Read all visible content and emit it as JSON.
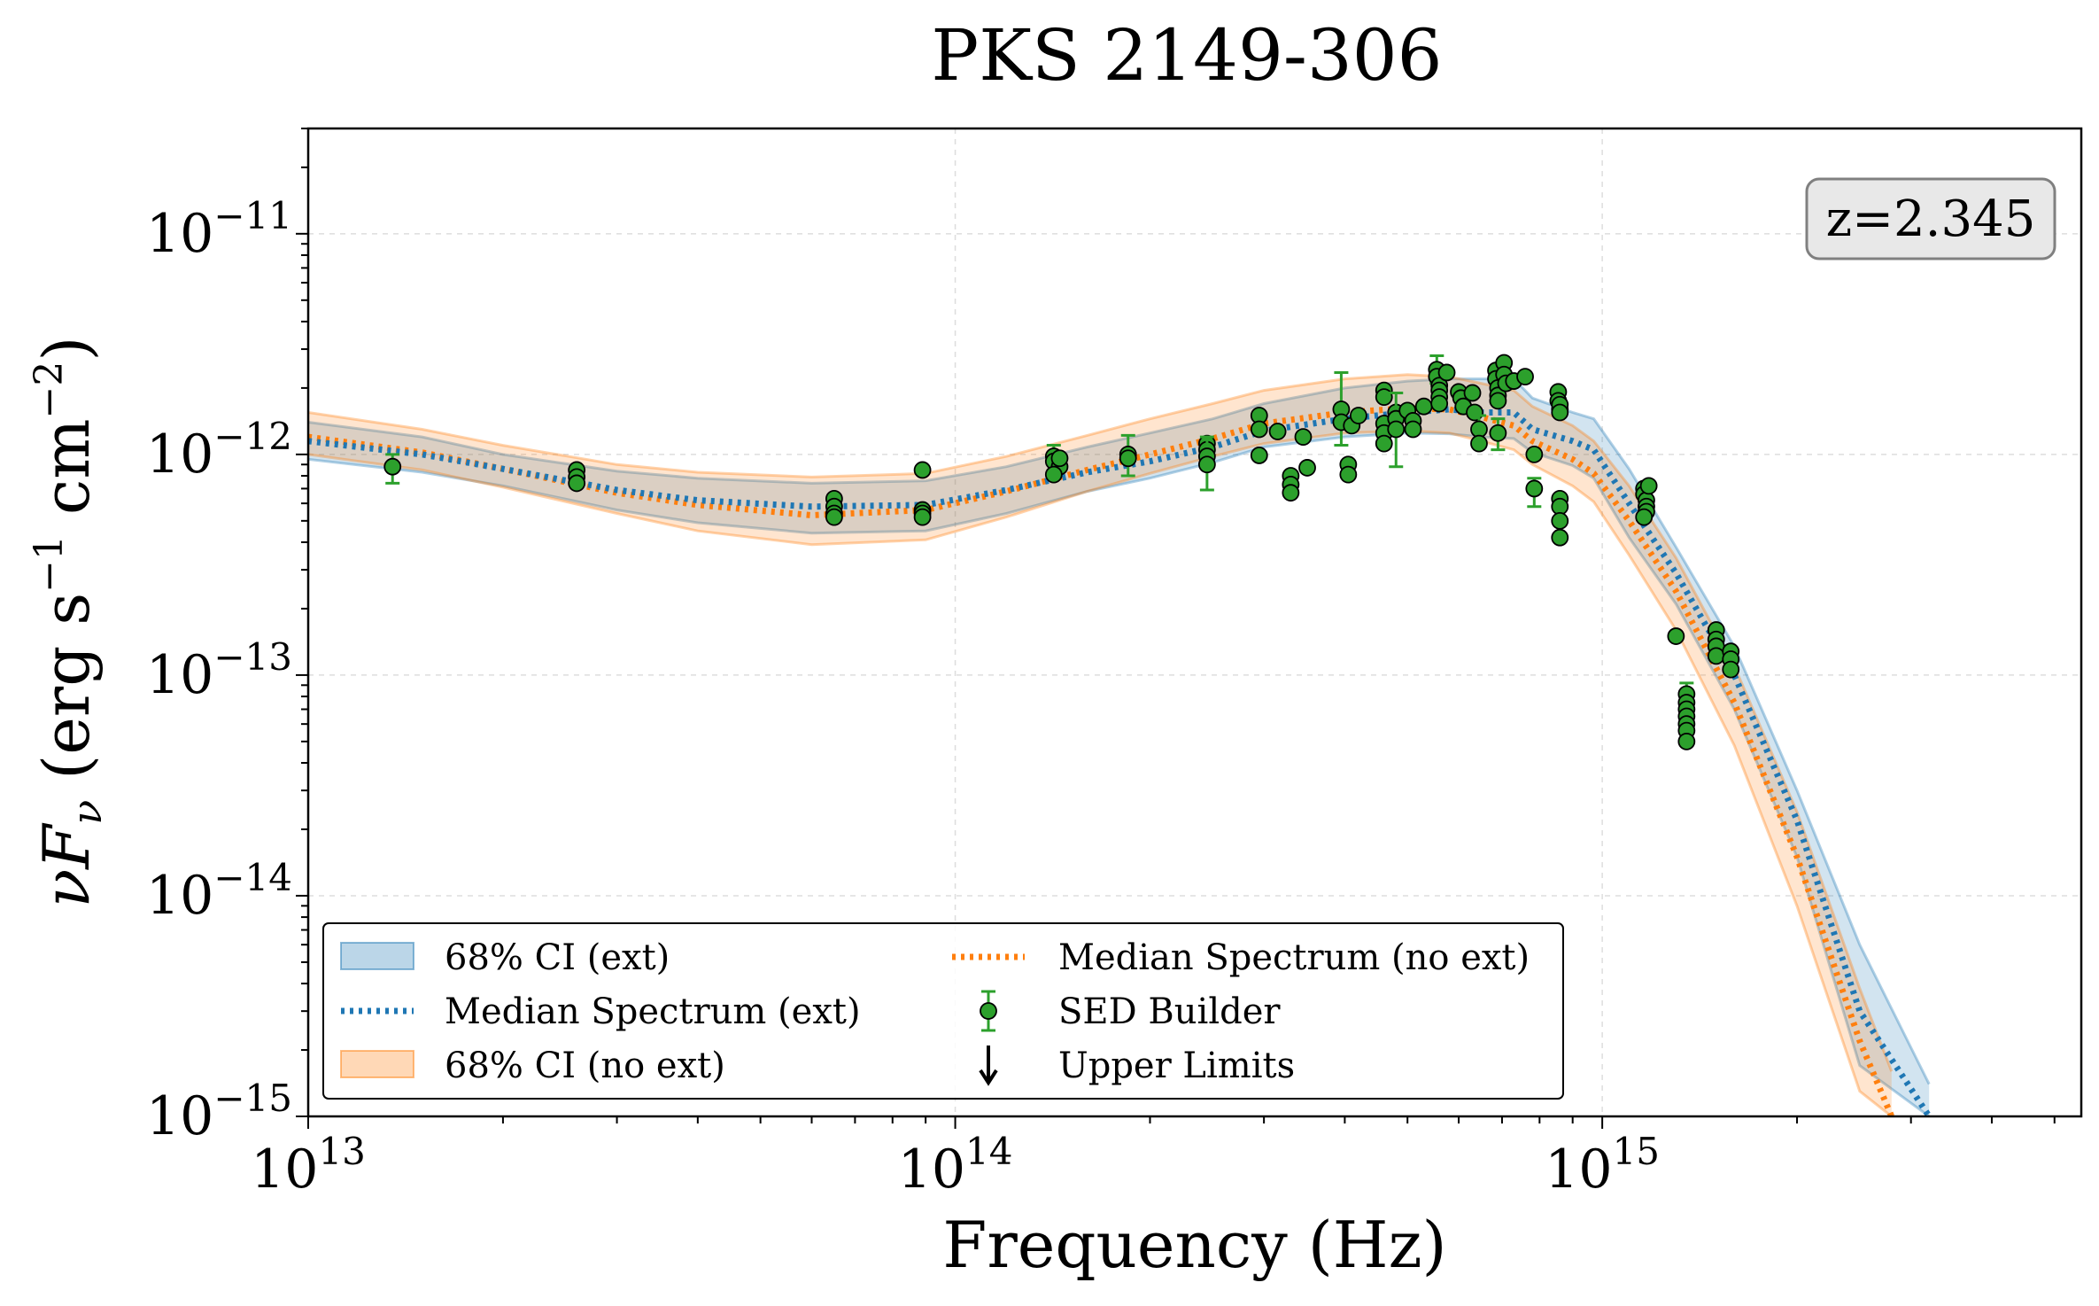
{
  "chart_data": {
    "type": "line",
    "title": "PKS 2149-306",
    "xlabel": "Frequency (Hz)",
    "ylabel": "νF_ν (erg s⁻¹ cm⁻²)",
    "ylabel_parts": {
      "main": "νF",
      "sub": "ν",
      "rest": " (erg s",
      "exp1": "−1",
      "mid": " cm",
      "exp2": "−2",
      "end": ")"
    },
    "x_scale": "log",
    "y_scale": "log",
    "xlim": [
      10000000000000.0,
      5500000000000000.0
    ],
    "ylim": [
      1e-15,
      3e-11
    ],
    "x_ticks": [
      {
        "value": 10000000000000.0,
        "base": "10",
        "exp": "13"
      },
      {
        "value": 100000000000000.0,
        "base": "10",
        "exp": "14"
      },
      {
        "value": 1000000000000000.0,
        "base": "10",
        "exp": "15"
      }
    ],
    "y_ticks": [
      {
        "value": 1e-15,
        "base": "10",
        "exp": "−15"
      },
      {
        "value": 1e-14,
        "base": "10",
        "exp": "−14"
      },
      {
        "value": 1e-13,
        "base": "10",
        "exp": "−13"
      },
      {
        "value": 1e-12,
        "base": "10",
        "exp": "−12"
      },
      {
        "value": 1e-11,
        "base": "10",
        "exp": "−11"
      }
    ],
    "grid": true,
    "annotation": "z=2.345",
    "legend": {
      "placement": "lower-left",
      "entries": [
        {
          "label": "68% CI (ext)",
          "kind": "patch",
          "color": "#1f77b4"
        },
        {
          "label": "Median Spectrum (ext)",
          "kind": "dotted",
          "color": "#1f77b4"
        },
        {
          "label": "68% CI (no ext)",
          "kind": "patch",
          "color": "#ff7f0e"
        },
        {
          "label": "Median Spectrum (no ext)",
          "kind": "dotted",
          "color": "#ff7f0e"
        },
        {
          "label": "SED Builder",
          "kind": "errorpoint",
          "color": "#2ca02c"
        },
        {
          "label": "Upper Limits",
          "kind": "arrow",
          "color": "#000000"
        }
      ]
    },
    "colors": {
      "ext": "#1f77b4",
      "noext": "#ff7f0e",
      "points": "#2ca02c"
    },
    "series": [
      {
        "name": "Median Spectrum (ext)",
        "color": "#1f77b4",
        "x": [
          10000000000000.0,
          15000000000000.0,
          20000000000000.0,
          30000000000000.0,
          40000000000000.0,
          60000000000000.0,
          90000000000000.0,
          120000000000000.0,
          160000000000000.0,
          200000000000000.0,
          250000000000000.0,
          300000000000000.0,
          400000000000000.0,
          500000000000000.0,
          580000000000000.0,
          650000000000000.0,
          730000000000000.0,
          780000000000000.0,
          900000000000000.0,
          970000000000000.0,
          1100000000000000.0,
          1300000000000000.0,
          1600000000000000.0,
          2000000000000000.0,
          2500000000000000.0,
          3200000000000000.0
        ],
        "y": [
          1.15e-12,
          1e-12,
          8.6e-13,
          6.9e-13,
          6.2e-13,
          5.8e-13,
          5.9e-13,
          6.9e-13,
          8.3e-13,
          9.3e-13,
          1.08e-12,
          1.28e-12,
          1.45e-12,
          1.55e-12,
          1.6e-12,
          1.55e-12,
          1.55e-12,
          1.3e-12,
          1.15e-12,
          1.05e-12,
          6e-13,
          2.9e-13,
          1e-13,
          2.2e-14,
          3e-15,
          1e-15
        ],
        "ci_lower": [
          9.5e-13,
          8.3e-13,
          7.2e-13,
          5.6e-13,
          4.9e-13,
          4.4e-13,
          4.5e-13,
          5.4e-13,
          6.8e-13,
          7.8e-13,
          9.2e-13,
          1.08e-12,
          1.2e-12,
          1.25e-12,
          1.24e-12,
          1.2e-12,
          1.18e-12,
          1.02e-12,
          8.9e-13,
          7.8e-13,
          4.2e-13,
          2.1e-13,
          7e-14,
          1.5e-14,
          1.7e-15,
          5e-16
        ],
        "ci_upper": [
          1.4e-12,
          1.2e-12,
          1e-12,
          8.4e-13,
          7.8e-13,
          7.4e-13,
          7.6e-13,
          8.8e-13,
          1.08e-12,
          1.25e-12,
          1.45e-12,
          1.7e-12,
          2e-12,
          2.15e-12,
          2.2e-12,
          2.2e-12,
          2.2e-12,
          1.8e-12,
          1.55e-12,
          1.45e-12,
          8.6e-13,
          3.8e-13,
          1.35e-13,
          3e-14,
          6e-15,
          1.4e-15
        ]
      },
      {
        "name": "Median Spectrum (no ext)",
        "color": "#ff7f0e",
        "x": [
          10000000000000.0,
          15000000000000.0,
          20000000000000.0,
          30000000000000.0,
          40000000000000.0,
          60000000000000.0,
          90000000000000.0,
          120000000000000.0,
          160000000000000.0,
          200000000000000.0,
          250000000000000.0,
          300000000000000.0,
          400000000000000.0,
          500000000000000.0,
          580000000000000.0,
          650000000000000.0,
          730000000000000.0,
          780000000000000.0,
          900000000000000.0,
          970000000000000.0,
          1100000000000000.0,
          1300000000000000.0,
          1600000000000000.0,
          2000000000000000.0,
          2500000000000000.0,
          2800000000000000.0
        ],
        "y": [
          1.2e-12,
          1.02e-12,
          8.6e-13,
          6.7e-13,
          5.9e-13,
          5.3e-13,
          5.6e-13,
          6.8e-13,
          8.5e-13,
          1e-12,
          1.18e-12,
          1.38e-12,
          1.55e-12,
          1.62e-12,
          1.6e-12,
          1.48e-12,
          1.35e-12,
          1.15e-12,
          9.5e-13,
          8.2e-13,
          5e-13,
          2.4e-13,
          7.5e-14,
          1.5e-14,
          2.2e-15,
          1e-15
        ],
        "ci_lower": [
          1e-12,
          8.5e-13,
          7.1e-13,
          5.4e-13,
          4.5e-13,
          3.9e-13,
          4.1e-13,
          5.2e-13,
          6.8e-13,
          8.2e-13,
          9.8e-13,
          1.12e-12,
          1.25e-12,
          1.28e-12,
          1.25e-12,
          1.15e-12,
          1.05e-12,
          9e-13,
          7.2e-13,
          6.1e-13,
          3.5e-13,
          1.6e-13,
          4.8e-14,
          9e-15,
          1.3e-15,
          6e-16
        ],
        "ci_upper": [
          1.55e-12,
          1.3e-12,
          1.1e-12,
          9e-13,
          8.3e-13,
          7.9e-13,
          8.2e-13,
          9.8e-13,
          1.22e-12,
          1.45e-12,
          1.7e-12,
          1.95e-12,
          2.2e-12,
          2.3e-12,
          2.25e-12,
          2.1e-12,
          1.95e-12,
          1.65e-12,
          1.35e-12,
          1.15e-12,
          7.2e-13,
          3.4e-13,
          1.1e-13,
          2.4e-14,
          3.8e-15,
          1.6e-15
        ]
      }
    ],
    "points": {
      "name": "SED Builder",
      "color": "#2ca02c",
      "data": [
        {
          "x": 13500000000000.0,
          "y": 8.8e-13,
          "err": [
            7.4e-13,
            1e-12
          ]
        },
        {
          "x": 26000000000000.0,
          "y": 8.5e-13
        },
        {
          "x": 26000000000000.0,
          "y": 7.9e-13
        },
        {
          "x": 26000000000000.0,
          "y": 7.4e-13
        },
        {
          "x": 65000000000000.0,
          "y": 6.3e-13
        },
        {
          "x": 65000000000000.0,
          "y": 5.8e-13
        },
        {
          "x": 65000000000000.0,
          "y": 5.4e-13
        },
        {
          "x": 65000000000000.0,
          "y": 5.2e-13
        },
        {
          "x": 89000000000000.0,
          "y": 8.5e-13
        },
        {
          "x": 89000000000000.0,
          "y": 5.6e-13
        },
        {
          "x": 89000000000000.0,
          "y": 5.4e-13
        },
        {
          "x": 89000000000000.0,
          "y": 5.2e-13
        },
        {
          "x": 142000000000000.0,
          "y": 9.8e-13,
          "err": [
            8.5e-13,
            1.1e-12
          ]
        },
        {
          "x": 142000000000000.0,
          "y": 9.3e-13
        },
        {
          "x": 145000000000000.0,
          "y": 8.8e-13
        },
        {
          "x": 142000000000000.0,
          "y": 8.1e-13
        },
        {
          "x": 145000000000000.0,
          "y": 9.6e-13
        },
        {
          "x": 185000000000000.0,
          "y": 1e-12,
          "err": [
            8e-13,
            1.22e-12
          ]
        },
        {
          "x": 185000000000000.0,
          "y": 9.6e-13
        },
        {
          "x": 245000000000000.0,
          "y": 1.12e-12
        },
        {
          "x": 245000000000000.0,
          "y": 1.05e-12
        },
        {
          "x": 245000000000000.0,
          "y": 9.8e-13,
          "err": [
            6.9e-13,
            1.2e-12
          ]
        },
        {
          "x": 245000000000000.0,
          "y": 9e-13
        },
        {
          "x": 295000000000000.0,
          "y": 1.5e-12
        },
        {
          "x": 295000000000000.0,
          "y": 1.3e-12
        },
        {
          "x": 295000000000000.0,
          "y": 9.9e-13
        },
        {
          "x": 315000000000000.0,
          "y": 1.27e-12
        },
        {
          "x": 330000000000000.0,
          "y": 8e-13
        },
        {
          "x": 330000000000000.0,
          "y": 7.3e-13
        },
        {
          "x": 330000000000000.0,
          "y": 6.7e-13
        },
        {
          "x": 345000000000000.0,
          "y": 1.2e-12
        },
        {
          "x": 350000000000000.0,
          "y": 8.7e-13
        },
        {
          "x": 395000000000000.0,
          "y": 1.6e-12,
          "err": [
            1.1e-12,
            2.35e-12
          ]
        },
        {
          "x": 395000000000000.0,
          "y": 1.4e-12
        },
        {
          "x": 405000000000000.0,
          "y": 9e-13
        },
        {
          "x": 405000000000000.0,
          "y": 8.1e-13
        },
        {
          "x": 410000000000000.0,
          "y": 1.35e-12
        },
        {
          "x": 420000000000000.0,
          "y": 1.5e-12
        },
        {
          "x": 460000000000000.0,
          "y": 1.95e-12
        },
        {
          "x": 460000000000000.0,
          "y": 1.82e-12
        },
        {
          "x": 460000000000000.0,
          "y": 1.38e-12
        },
        {
          "x": 460000000000000.0,
          "y": 1.25e-12
        },
        {
          "x": 460000000000000.0,
          "y": 1.12e-12
        },
        {
          "x": 480000000000000.0,
          "y": 1.55e-12
        },
        {
          "x": 480000000000000.0,
          "y": 1.45e-12,
          "err": [
            8.8e-13,
            1.9e-12
          ]
        },
        {
          "x": 480000000000000.0,
          "y": 1.3e-12
        },
        {
          "x": 500000000000000.0,
          "y": 1.58e-12
        },
        {
          "x": 510000000000000.0,
          "y": 1.42e-12
        },
        {
          "x": 510000000000000.0,
          "y": 1.3e-12
        },
        {
          "x": 530000000000000.0,
          "y": 1.65e-12
        },
        {
          "x": 555000000000000.0,
          "y": 2.42e-12,
          "err": [
            2.1e-12,
            2.8e-12
          ]
        },
        {
          "x": 555000000000000.0,
          "y": 2.25e-12
        },
        {
          "x": 560000000000000.0,
          "y": 2.05e-12
        },
        {
          "x": 560000000000000.0,
          "y": 1.95e-12
        },
        {
          "x": 560000000000000.0,
          "y": 1.82e-12
        },
        {
          "x": 560000000000000.0,
          "y": 1.7e-12
        },
        {
          "x": 575000000000000.0,
          "y": 2.35e-12
        },
        {
          "x": 600000000000000.0,
          "y": 1.92e-12
        },
        {
          "x": 605000000000000.0,
          "y": 1.8e-12
        },
        {
          "x": 610000000000000.0,
          "y": 1.65e-12
        },
        {
          "x": 630000000000000.0,
          "y": 1.9e-12
        },
        {
          "x": 635000000000000.0,
          "y": 1.55e-12
        },
        {
          "x": 645000000000000.0,
          "y": 1.3e-12,
          "err": [
            1.1e-12,
            1.5e-12
          ]
        },
        {
          "x": 645000000000000.0,
          "y": 1.12e-12
        },
        {
          "x": 685000000000000.0,
          "y": 2.4e-12
        },
        {
          "x": 685000000000000.0,
          "y": 2.2e-12
        },
        {
          "x": 690000000000000.0,
          "y": 2e-12
        },
        {
          "x": 690000000000000.0,
          "y": 1.85e-12
        },
        {
          "x": 690000000000000.0,
          "y": 1.75e-12
        },
        {
          "x": 690000000000000.0,
          "y": 1.25e-12,
          "err": [
            1.05e-12,
            1.45e-12
          ]
        },
        {
          "x": 705000000000000.0,
          "y": 2.6e-12
        },
        {
          "x": 705000000000000.0,
          "y": 2.3e-12
        },
        {
          "x": 710000000000000.0,
          "y": 2.1e-12
        },
        {
          "x": 730000000000000.0,
          "y": 2.15e-12
        },
        {
          "x": 760000000000000.0,
          "y": 2.25e-12
        },
        {
          "x": 785000000000000.0,
          "y": 1e-12
        },
        {
          "x": 785000000000000.0,
          "y": 7e-13,
          "err": [
            5.8e-13,
            7.8e-13
          ]
        },
        {
          "x": 855000000000000.0,
          "y": 1.92e-12
        },
        {
          "x": 855000000000000.0,
          "y": 1.75e-12
        },
        {
          "x": 860000000000000.0,
          "y": 1.6e-12
        },
        {
          "x": 860000000000000.0,
          "y": 1.68e-12
        },
        {
          "x": 860000000000000.0,
          "y": 1.55e-12
        },
        {
          "x": 860000000000000.0,
          "y": 6.3e-13
        },
        {
          "x": 860000000000000.0,
          "y": 5.8e-13
        },
        {
          "x": 860000000000000.0,
          "y": 5e-13
        },
        {
          "x": 860000000000000.0,
          "y": 4.2e-13
        },
        {
          "x": 1160000000000000.0,
          "y": 7e-13
        },
        {
          "x": 1160000000000000.0,
          "y": 6.6e-13
        },
        {
          "x": 1170000000000000.0,
          "y": 6.2e-13
        },
        {
          "x": 1170000000000000.0,
          "y": 5.8e-13
        },
        {
          "x": 1170000000000000.0,
          "y": 5.5e-13
        },
        {
          "x": 1180000000000000.0,
          "y": 7.2e-13
        },
        {
          "x": 1160000000000000.0,
          "y": 5.2e-13
        },
        {
          "x": 1300000000000000.0,
          "y": 1.5e-13
        },
        {
          "x": 1350000000000000.0,
          "y": 8.2e-14,
          "err": [
            7e-14,
            9.2e-14
          ]
        },
        {
          "x": 1350000000000000.0,
          "y": 7.5e-14
        },
        {
          "x": 1350000000000000.0,
          "y": 7e-14
        },
        {
          "x": 1350000000000000.0,
          "y": 6.5e-14
        },
        {
          "x": 1350000000000000.0,
          "y": 6e-14
        },
        {
          "x": 1350000000000000.0,
          "y": 5.6e-14
        },
        {
          "x": 1350000000000000.0,
          "y": 5e-14
        },
        {
          "x": 1500000000000000.0,
          "y": 1.6e-13
        },
        {
          "x": 1500000000000000.0,
          "y": 1.45e-13
        },
        {
          "x": 1500000000000000.0,
          "y": 1.35e-13
        },
        {
          "x": 1500000000000000.0,
          "y": 1.22e-13
        },
        {
          "x": 1580000000000000.0,
          "y": 1.28e-13
        },
        {
          "x": 1580000000000000.0,
          "y": 1.18e-13
        },
        {
          "x": 1580000000000000.0,
          "y": 1.06e-13
        }
      ]
    }
  }
}
